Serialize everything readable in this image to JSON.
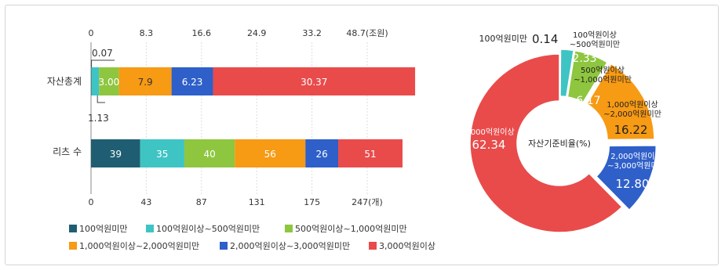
{
  "colors": {
    "under100": "#1f5e72",
    "100to500": "#3fc4c4",
    "500to1000": "#8ec63f",
    "1000to2000": "#f79a14",
    "2000to3000": "#2f5fc9",
    "over3000": "#e94b4b",
    "axis": "#888888",
    "grid": "#dddddd",
    "text": "#333333"
  },
  "chart_data": [
    {
      "type": "bar",
      "orientation": "horizontal",
      "stacked": true,
      "categories": [
        "자산총계",
        "리츠 수"
      ],
      "top_axis": {
        "ticks": [
          "0",
          "8.3",
          "16.6",
          "24.9",
          "33.2",
          "48.7(조원)"
        ],
        "range": [
          0,
          41.5
        ]
      },
      "bottom_axis": {
        "ticks": [
          "0",
          "43",
          "87",
          "131",
          "175",
          "247(개)"
        ],
        "range": [
          0,
          219
        ]
      },
      "series": [
        {
          "name": "100억원미만",
          "values": [
            0.07,
            39
          ],
          "labels": [
            "0.07",
            "39"
          ]
        },
        {
          "name": "100억원이상~500억원미만",
          "values": [
            1.13,
            35
          ],
          "labels": [
            "1.13",
            "35"
          ]
        },
        {
          "name": "500억원이상~1,000억원미만",
          "values": [
            3.0,
            40
          ],
          "labels": [
            "3.00",
            "40"
          ]
        },
        {
          "name": "1,000억원이상~2,000억원미만",
          "values": [
            7.9,
            56
          ],
          "labels": [
            "7.9",
            "56"
          ]
        },
        {
          "name": "2,000억원이상~3,000억원미만",
          "values": [
            6.23,
            26
          ],
          "labels": [
            "6.23",
            "26"
          ]
        },
        {
          "name": "3,000억원이상",
          "values": [
            30.37,
            51
          ],
          "labels": [
            "30.37",
            "51"
          ]
        }
      ],
      "legend": {
        "position": "bottom",
        "items": [
          "100억원미만",
          "100억원이상~500억원미만",
          "500억원이상~1,000억원미만",
          "1,000억원이상~2,000억원미만",
          "2,000억원이상~3,000억원미만",
          "3,000억원이상"
        ]
      }
    },
    {
      "type": "pie",
      "donut": true,
      "center_label": "자산기준비율(%)",
      "slices": [
        {
          "name": "100억원미만",
          "value": 0.14,
          "label_lines": [
            "100억원미만"
          ],
          "value_label": "0.14"
        },
        {
          "name": "100억원이상~500억원미만",
          "value": 2.33,
          "label_lines": [
            "100억원이상",
            "~500억원미만"
          ],
          "value_label": "2.33"
        },
        {
          "name": "500억원이상~1,000억원미만",
          "value": 6.17,
          "label_lines": [
            "500억원이상",
            "~1,000억원미만"
          ],
          "value_label": "6.17"
        },
        {
          "name": "1,000억원이상~2,000억원미만",
          "value": 16.22,
          "label_lines": [
            "1,000억원이상",
            "~2,000억원미만"
          ],
          "value_label": "16.22"
        },
        {
          "name": "2,000억원이상~3,000억원미만",
          "value": 12.8,
          "label_lines": [
            "2,000억원이상",
            "~3,000억원미만"
          ],
          "value_label": "12.80"
        },
        {
          "name": "3,000억원이상",
          "value": 62.34,
          "label_lines": [
            "3,000억원이상"
          ],
          "value_label": "62.34"
        }
      ]
    }
  ]
}
